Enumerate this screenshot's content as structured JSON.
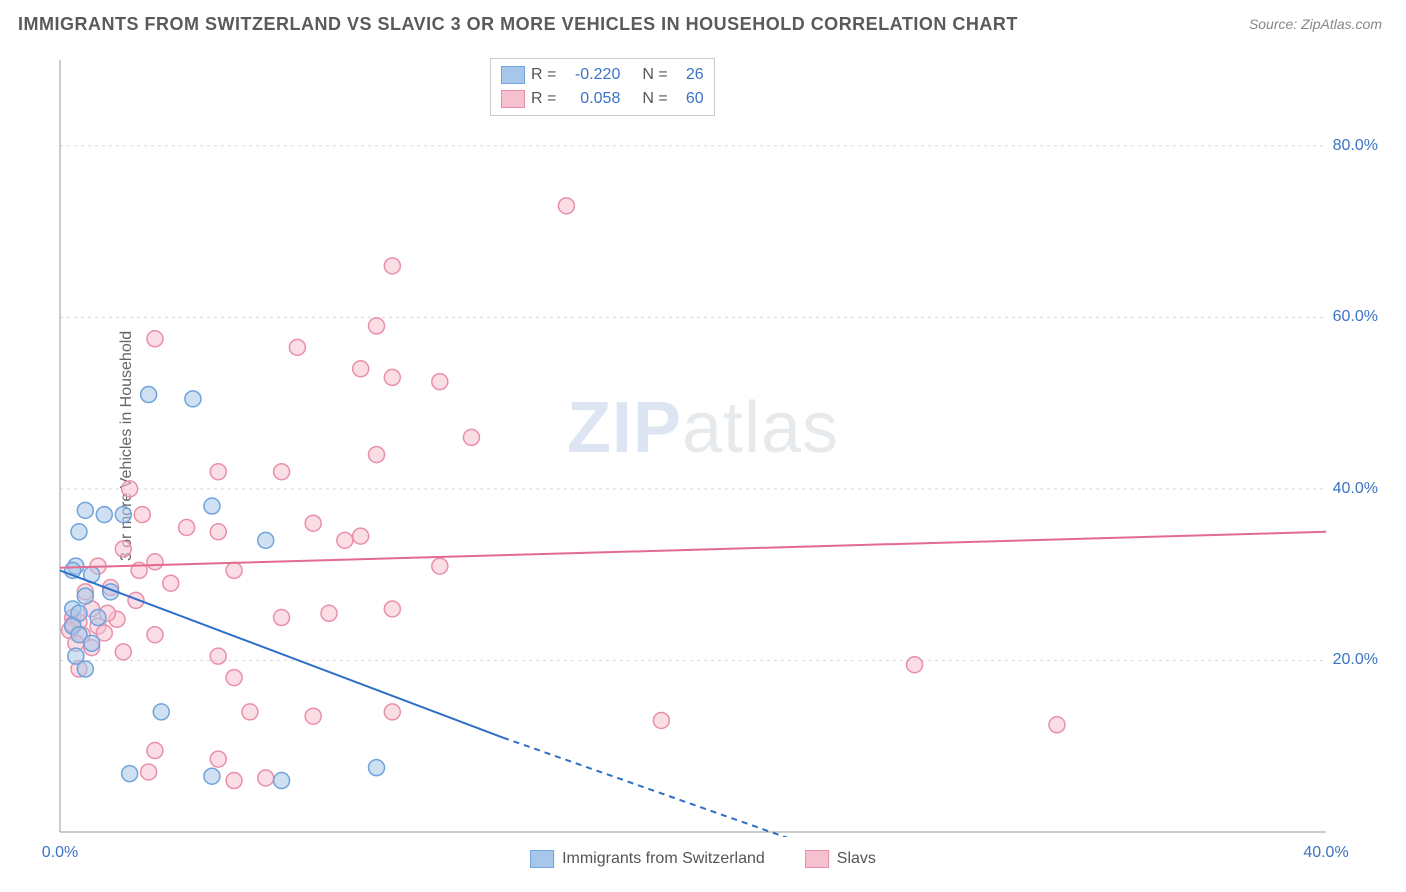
{
  "title": "IMMIGRANTS FROM SWITZERLAND VS SLAVIC 3 OR MORE VEHICLES IN HOUSEHOLD CORRELATION CHART",
  "source": "Source: ZipAtlas.com",
  "ylabel": "3 or more Vehicles in Household",
  "watermark_zip": "ZIP",
  "watermark_atlas": "atlas",
  "chart": {
    "type": "scatter-with-regression",
    "xlim": [
      0,
      40
    ],
    "ylim": [
      0,
      90
    ],
    "ytick_step": 20,
    "xtick_labels": [
      "0.0%",
      "40.0%"
    ],
    "ytick_labels": [
      "20.0%",
      "40.0%",
      "60.0%",
      "80.0%"
    ],
    "ytick_values": [
      20,
      40,
      60,
      80
    ],
    "grid_color": "#d8d8d8",
    "axis_color": "#999999",
    "background_color": "#ffffff",
    "marker_radius": 8,
    "marker_stroke_width": 1.5,
    "line_width": 2,
    "series": [
      {
        "name": "Immigrants from Switzerland",
        "short": "Immigrants from Switzerland",
        "fill": "#a8c6ea",
        "stroke": "#6fa3dd",
        "line_color": "#2f6fc7",
        "R": "-0.220",
        "N": "26",
        "regression": {
          "x1": 0,
          "y1": 30.5,
          "x2_solid": 14,
          "y2_solid": 11,
          "x2_dash": 24,
          "y2_dash": -2
        },
        "points": [
          [
            2.8,
            51.0
          ],
          [
            4.2,
            50.5
          ],
          [
            0.8,
            37.5
          ],
          [
            2.0,
            37.0
          ],
          [
            1.4,
            37.0
          ],
          [
            4.8,
            38.0
          ],
          [
            0.6,
            35.0
          ],
          [
            0.5,
            31.0
          ],
          [
            1.0,
            30.0
          ],
          [
            0.4,
            30.5
          ],
          [
            1.6,
            28.0
          ],
          [
            6.5,
            34.0
          ],
          [
            0.8,
            27.5
          ],
          [
            0.4,
            26.0
          ],
          [
            0.6,
            25.5
          ],
          [
            1.2,
            25.0
          ],
          [
            0.4,
            24.0
          ],
          [
            0.6,
            23.0
          ],
          [
            1.0,
            22.0
          ],
          [
            0.5,
            20.5
          ],
          [
            0.8,
            19.0
          ],
          [
            3.2,
            14.0
          ],
          [
            4.8,
            6.5
          ],
          [
            7.0,
            6.0
          ],
          [
            10.0,
            7.5
          ],
          [
            2.2,
            6.8
          ]
        ]
      },
      {
        "name": "Slavs",
        "short": "Slavs",
        "fill": "#f5c1cf",
        "stroke": "#e98fa9",
        "line_color": "#e46b8f",
        "R": "0.058",
        "N": "60",
        "regression": {
          "x1": 0,
          "y1": 30.8,
          "x2_solid": 40,
          "y2_solid": 35.0,
          "x2_dash": 40,
          "y2_dash": 35.0
        },
        "points": [
          [
            16.0,
            73.0
          ],
          [
            10.5,
            66.0
          ],
          [
            10.0,
            59.0
          ],
          [
            3.0,
            57.5
          ],
          [
            7.5,
            56.5
          ],
          [
            9.5,
            54.0
          ],
          [
            10.5,
            53.0
          ],
          [
            12.0,
            52.5
          ],
          [
            13.0,
            46.0
          ],
          [
            10.0,
            44.0
          ],
          [
            5.0,
            42.0
          ],
          [
            7.0,
            42.0
          ],
          [
            2.2,
            40.0
          ],
          [
            2.6,
            37.0
          ],
          [
            4.0,
            35.5
          ],
          [
            5.0,
            35.0
          ],
          [
            8.0,
            36.0
          ],
          [
            9.0,
            34.0
          ],
          [
            9.5,
            34.5
          ],
          [
            12.0,
            31.0
          ],
          [
            2.0,
            33.0
          ],
          [
            3.0,
            31.5
          ],
          [
            1.2,
            31.0
          ],
          [
            2.5,
            30.5
          ],
          [
            0.8,
            28.0
          ],
          [
            1.6,
            28.5
          ],
          [
            3.5,
            29.0
          ],
          [
            5.5,
            30.5
          ],
          [
            0.4,
            25.0
          ],
          [
            0.6,
            24.5
          ],
          [
            1.2,
            24.0
          ],
          [
            1.8,
            24.8
          ],
          [
            0.3,
            23.5
          ],
          [
            0.7,
            23.0
          ],
          [
            1.4,
            23.2
          ],
          [
            3.0,
            23.0
          ],
          [
            0.5,
            22.0
          ],
          [
            1.0,
            21.5
          ],
          [
            2.0,
            21.0
          ],
          [
            5.0,
            20.5
          ],
          [
            7.0,
            25.0
          ],
          [
            8.5,
            25.5
          ],
          [
            10.5,
            26.0
          ],
          [
            0.6,
            19.0
          ],
          [
            5.5,
            18.0
          ],
          [
            6.0,
            14.0
          ],
          [
            8.0,
            13.5
          ],
          [
            10.5,
            14.0
          ],
          [
            3.0,
            9.5
          ],
          [
            5.0,
            8.5
          ],
          [
            5.5,
            6.0
          ],
          [
            6.5,
            6.3
          ],
          [
            2.8,
            7.0
          ],
          [
            19.0,
            13.0
          ],
          [
            27.0,
            19.5
          ],
          [
            31.5,
            12.5
          ],
          [
            0.4,
            24.2
          ],
          [
            1.0,
            26.0
          ],
          [
            1.5,
            25.5
          ],
          [
            2.4,
            27.0
          ]
        ]
      }
    ]
  },
  "legend_top": {
    "R_label": "R =",
    "N_label": "N ="
  },
  "legend_bottom": {
    "items": [
      "Immigrants from Switzerland",
      "Slavs"
    ]
  }
}
